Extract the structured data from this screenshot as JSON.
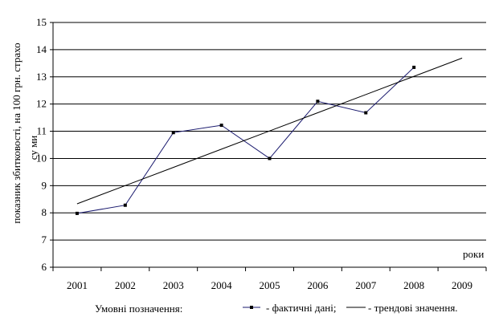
{
  "chart_data": {
    "type": "line",
    "title": "",
    "ylabel": "показник збитковості, на 100 грн. страхо",
    "ylabel_overlap": "су ми",
    "xlabel": "роки",
    "ylim": [
      6,
      15
    ],
    "yticks": [
      6,
      7,
      8,
      9,
      10,
      11,
      12,
      13,
      14,
      15
    ],
    "categories": [
      "2001",
      "2002",
      "2003",
      "2004",
      "2005",
      "2006",
      "2007",
      "2008",
      "2009"
    ],
    "grid": true,
    "legend_position": "bottom",
    "series": [
      {
        "name": "- фактичні дані;",
        "style": "line-markers",
        "color": "#1a1a6e",
        "values": [
          7.98,
          8.28,
          10.95,
          11.22,
          10.0,
          12.1,
          11.68,
          13.35,
          null
        ]
      },
      {
        "name": "- трендові значення.",
        "style": "line",
        "color": "#000000",
        "values": [
          8.33,
          9.0,
          9.67,
          10.34,
          11.01,
          11.68,
          12.35,
          13.02,
          13.69
        ]
      }
    ]
  },
  "legend": {
    "caption": "Умовні позначення:"
  }
}
